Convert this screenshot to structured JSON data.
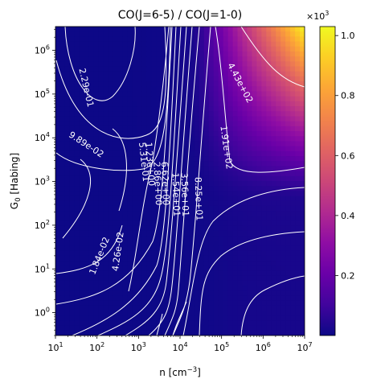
{
  "chart_data": {
    "type": "heatmap",
    "title": "CO(J=6-5) / CO(J=1-0)",
    "xlabel": "n [cm",
    "xlabel_sup": "−3",
    "xlabel_end": "]",
    "ylabel_main": "G",
    "ylabel_sub": "0",
    "ylabel_end": " [Habing]",
    "x_scale": "log",
    "y_scale": "log",
    "xlim": [
      10,
      10000000
    ],
    "ylim": [
      0.3,
      3500000
    ],
    "x_ticks": [
      {
        "value": 10,
        "base": "10",
        "exp": "1"
      },
      {
        "value": 100,
        "base": "10",
        "exp": "2"
      },
      {
        "value": 1000,
        "base": "10",
        "exp": "3"
      },
      {
        "value": 10000,
        "base": "10",
        "exp": "4"
      },
      {
        "value": 100000,
        "base": "10",
        "exp": "5"
      },
      {
        "value": 1000000,
        "base": "10",
        "exp": "6"
      },
      {
        "value": 10000000,
        "base": "10",
        "exp": "7"
      }
    ],
    "y_ticks": [
      {
        "value": 1,
        "base": "10",
        "exp": "0"
      },
      {
        "value": 10,
        "base": "10",
        "exp": "1"
      },
      {
        "value": 100,
        "base": "10",
        "exp": "2"
      },
      {
        "value": 1000,
        "base": "10",
        "exp": "3"
      },
      {
        "value": 10000,
        "base": "10",
        "exp": "4"
      },
      {
        "value": 100000,
        "base": "10",
        "exp": "5"
      },
      {
        "value": 1000000,
        "base": "10",
        "exp": "6"
      }
    ],
    "colormap": "plasma",
    "colorbar": {
      "offset_base": "×10",
      "offset_exp": "3",
      "vmin": 0.0,
      "vmax": 1.03,
      "ticks": [
        {
          "value": 0.2,
          "label": "0.2"
        },
        {
          "value": 0.4,
          "label": "0.4"
        },
        {
          "value": 0.6,
          "label": "0.6"
        },
        {
          "value": 0.8,
          "label": "0.8"
        },
        {
          "value": 1.0,
          "label": "1.0"
        }
      ]
    },
    "contour_labels": [
      {
        "text": "2.29e-01",
        "x": 55,
        "y": 140000,
        "angle": 77
      },
      {
        "text": "9.89e-02",
        "x": 55,
        "y": 7000,
        "angle": 33
      },
      {
        "text": "1.84e-02",
        "x": 115,
        "y": 20,
        "angle": -68
      },
      {
        "text": "4.26e-02",
        "x": 320,
        "y": 25,
        "angle": -82
      },
      {
        "text": "5.31e-01",
        "x": 1350,
        "y": 2800,
        "angle": 84
      },
      {
        "text": "1.23e+00",
        "x": 1900,
        "y": 2500,
        "angle": 86
      },
      {
        "text": "2.86e+00",
        "x": 2900,
        "y": 900,
        "angle": 87
      },
      {
        "text": "6.62e+00",
        "x": 4400,
        "y": 900,
        "angle": 88
      },
      {
        "text": "1.54e+01",
        "x": 8000,
        "y": 500,
        "angle": 88
      },
      {
        "text": "3.56e+01",
        "x": 13000,
        "y": 500,
        "angle": 88
      },
      {
        "text": "8.25e+01",
        "x": 28000,
        "y": 400,
        "angle": 88
      },
      {
        "text": "1.91e+02",
        "x": 130000,
        "y": 6000,
        "angle": 82
      },
      {
        "text": "4.43e+02",
        "x": 280000,
        "y": 180000,
        "angle": 62
      }
    ]
  }
}
